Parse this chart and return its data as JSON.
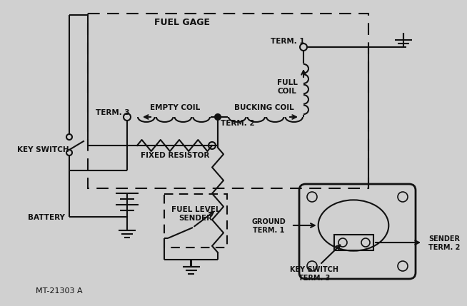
{
  "bg_color": "#d0d0d0",
  "line_color": "#111111",
  "labels": {
    "fuel_gage": "FUEL GAGE",
    "empty_coil": "EMPTY COIL",
    "bucking_coil": "BUCKING COIL",
    "full_coil": "FULL\nCOIL",
    "term1": "TERM. 1",
    "term2": "TERM. 2",
    "term3": "TERM. 3",
    "key_switch": "KEY SWITCH",
    "battery": "BATTERY",
    "fixed_resistor": "FIXED RESISTOR",
    "fuel_level_sender": "FUEL LEVEL\nSENDER",
    "ground_term1": "GROUND\nTERM. 1",
    "key_switch_term3": "KEY SWITCH\nTERM. 3",
    "sender_term2": "SENDER\nTERM. 2",
    "mt": "MT-21303 A"
  }
}
